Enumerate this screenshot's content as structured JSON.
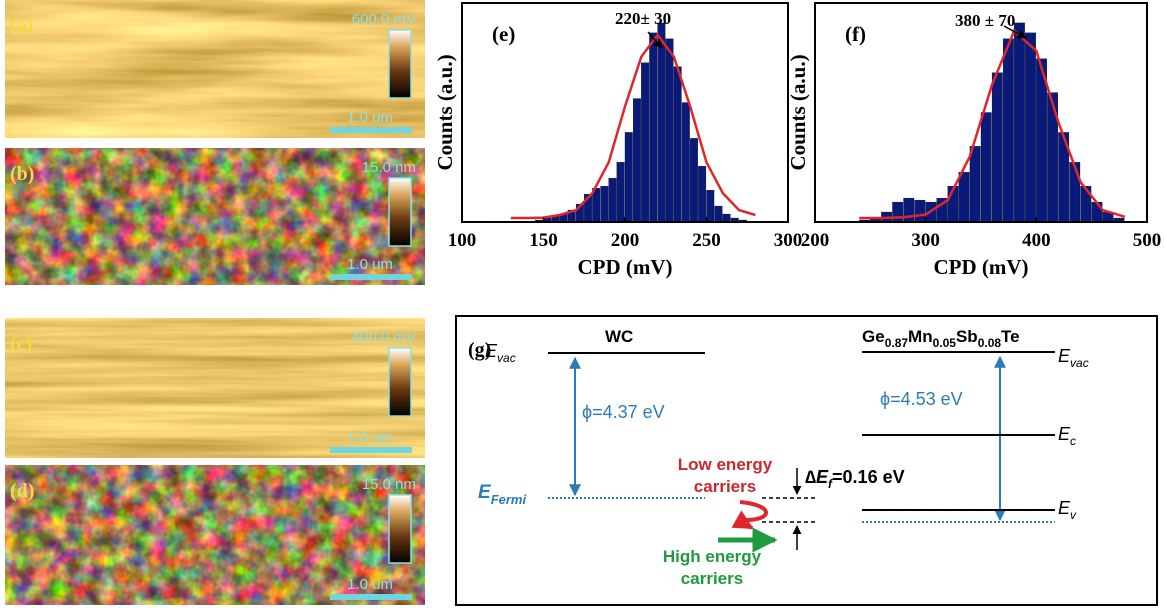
{
  "panels": [
    {
      "label": "(a)",
      "scale": "600.0 mV",
      "bar": "1.0 um"
    },
    {
      "label": "(b)",
      "scale": "15.0 nm",
      "bar": "1.0 um"
    },
    {
      "label": "(c)",
      "scale": "400.0 mV",
      "bar": "1.0 um"
    },
    {
      "label": "(d)",
      "scale": "15.0 nm",
      "bar": "1.0 um"
    }
  ],
  "chart_data": [
    {
      "type": "histogram",
      "label": "(e)",
      "annotation": "220± 30",
      "x_label": "CPD (mV)",
      "y_label": "Counts (a.u.)",
      "color": "#0a1a7a",
      "bins": [
        135,
        140,
        145,
        150,
        155,
        160,
        165,
        170,
        175,
        180,
        185,
        190,
        195,
        200,
        205,
        210,
        215,
        220,
        225,
        230,
        235,
        240,
        245,
        250,
        255,
        260,
        265,
        270,
        275
      ],
      "values": [
        0,
        0,
        1,
        2,
        3,
        4,
        6,
        9,
        14,
        17,
        18,
        22,
        30,
        45,
        62,
        80,
        95,
        100,
        92,
        78,
        60,
        42,
        28,
        16,
        8,
        4,
        2,
        1
      ],
      "fit": {
        "color": "#e0262b",
        "x": [
          130,
          140,
          150,
          160,
          170,
          180,
          190,
          200,
          210,
          220,
          230,
          240,
          250,
          260,
          270,
          280
        ],
        "values": [
          2,
          2,
          2.2,
          3.5,
          6,
          14.5,
          30,
          58,
          83,
          94,
          83,
          58,
          30,
          14.5,
          6,
          3.5
        ]
      },
      "xlim": [
        100,
        300
      ],
      "xticks": [
        100,
        150,
        200,
        250,
        300
      ],
      "ylim": [
        0,
        110
      ]
    },
    {
      "type": "histogram",
      "label": "(f)",
      "annotation": "380 ± 70",
      "x_label": "CPD (mV)",
      "y_label": "Counts (a.u.)",
      "color": "#0a1a7a",
      "bins": [
        240,
        250,
        260,
        270,
        280,
        290,
        300,
        310,
        320,
        330,
        340,
        350,
        360,
        370,
        380,
        390,
        400,
        410,
        420,
        430,
        440,
        450,
        460,
        470,
        480
      ],
      "values": [
        1,
        2,
        5,
        10,
        12,
        11,
        10,
        12,
        18,
        25,
        38,
        55,
        75,
        92,
        100,
        95,
        82,
        65,
        45,
        30,
        18,
        10,
        5,
        2
      ],
      "fit": {
        "color": "#e0262b",
        "x": [
          240,
          260,
          280,
          300,
          320,
          340,
          360,
          380,
          400,
          420,
          440,
          460,
          480
        ],
        "values": [
          2,
          2,
          2.4,
          3.7,
          11,
          33,
          69,
          96,
          86,
          50,
          20,
          6,
          2.6
        ]
      },
      "xlim": [
        200,
        500
      ],
      "xticks": [
        200,
        300,
        400,
        500
      ],
      "ylim": [
        0,
        110
      ]
    }
  ],
  "diagram": {
    "label": "(g)",
    "left_title": "WC",
    "left_evac": {
      "main": "E",
      "sub": "vac"
    },
    "left_phi": "ϕ=4.37 eV",
    "fermi": {
      "main": "E",
      "sub": "Fermi"
    },
    "low": [
      "Low energy",
      "carriers"
    ],
    "high": [
      "High energy",
      "carriers"
    ],
    "delta": {
      "main": "∆E",
      "sub": "f",
      "rest": "=0.16 eV"
    },
    "material": [
      "Ge",
      "0.87",
      "Mn",
      "0.05",
      "Sb",
      "0.08",
      "Te"
    ],
    "right_evac": {
      "main": "E",
      "sub": "vac"
    },
    "right_phi": "ϕ=4.53 eV",
    "ec": {
      "main": "E",
      "sub": "c"
    },
    "ev": {
      "main": "E",
      "sub": "v"
    }
  }
}
